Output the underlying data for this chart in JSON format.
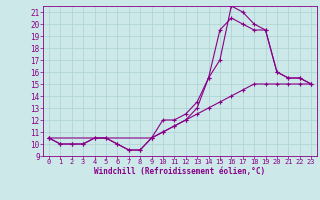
{
  "xlabel": "Windchill (Refroidissement éolien,°C)",
  "bg_color": "#cde8e8",
  "grid_color": "#b0d4d4",
  "line_color": "#880088",
  "xlim": [
    -0.5,
    23.5
  ],
  "ylim": [
    9,
    21.5
  ],
  "xticks": [
    0,
    1,
    2,
    3,
    4,
    5,
    6,
    7,
    8,
    9,
    10,
    11,
    12,
    13,
    14,
    15,
    16,
    17,
    18,
    19,
    20,
    21,
    22,
    23
  ],
  "yticks": [
    9,
    10,
    11,
    12,
    13,
    14,
    15,
    16,
    17,
    18,
    19,
    20,
    21
  ],
  "line1_x": [
    0,
    1,
    2,
    3,
    4,
    5,
    6,
    7,
    8,
    9,
    10,
    11,
    12,
    13,
    14,
    15,
    16,
    17,
    18,
    19,
    20,
    21,
    22,
    23
  ],
  "line1_y": [
    10.5,
    10.0,
    10.0,
    10.0,
    10.5,
    10.5,
    10.0,
    9.5,
    9.5,
    10.5,
    12.0,
    12.0,
    12.5,
    13.5,
    15.5,
    17.0,
    21.5,
    21.0,
    20.0,
    19.5,
    16.0,
    15.5,
    15.5,
    15.0
  ],
  "line2_x": [
    0,
    1,
    2,
    3,
    4,
    5,
    6,
    7,
    8,
    9,
    10,
    11,
    12,
    13,
    14,
    15,
    16,
    17,
    18,
    19,
    20,
    21,
    22,
    23
  ],
  "line2_y": [
    10.5,
    10.0,
    10.0,
    10.0,
    10.5,
    10.5,
    10.0,
    9.5,
    9.5,
    10.5,
    11.0,
    11.5,
    12.0,
    13.0,
    15.5,
    19.5,
    20.5,
    20.0,
    19.5,
    19.5,
    16.0,
    15.5,
    15.5,
    15.0
  ],
  "line3_x": [
    0,
    9,
    10,
    11,
    12,
    13,
    14,
    15,
    16,
    17,
    18,
    19,
    20,
    21,
    22,
    23
  ],
  "line3_y": [
    10.5,
    10.5,
    11.0,
    11.5,
    12.0,
    12.5,
    13.0,
    13.5,
    14.0,
    14.5,
    15.0,
    15.0,
    15.0,
    15.0,
    15.0,
    15.0
  ]
}
